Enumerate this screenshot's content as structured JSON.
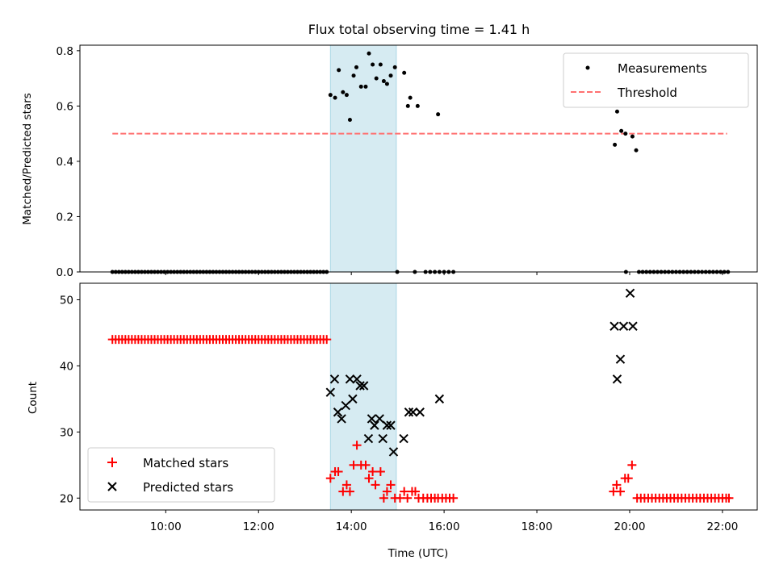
{
  "chart_data": {
    "title": "Flux total observing time = 1.41 h",
    "xlabel": "Time (UTC)",
    "x_unit": "hours UTC",
    "xlim": [
      8.15,
      22.75
    ],
    "x_ticks": [
      {
        "value": 10,
        "label": "10:00"
      },
      {
        "value": 12,
        "label": "12:00"
      },
      {
        "value": 14,
        "label": "14:00"
      },
      {
        "value": 16,
        "label": "16:00"
      },
      {
        "value": 18,
        "label": "18:00"
      },
      {
        "value": 20,
        "label": "20:00"
      },
      {
        "value": 22,
        "label": "22:00"
      }
    ],
    "highlight_span": {
      "x0": 13.55,
      "x1": 14.97,
      "color": "#add8e6",
      "alpha": 0.5
    },
    "top": {
      "type": "scatter",
      "ylabel": "Matched/Predicted stars",
      "ylim": [
        0,
        0.82
      ],
      "y_ticks": [
        {
          "value": 0,
          "label": "0.0"
        },
        {
          "value": 0.2,
          "label": "0.2"
        },
        {
          "value": 0.4,
          "label": "0.4"
        },
        {
          "value": 0.6,
          "label": "0.6"
        },
        {
          "value": 0.8,
          "label": "0.8"
        }
      ],
      "legend_position": "top-right",
      "series": [
        {
          "name": "Measurements",
          "color": "#000000",
          "marker": "dot",
          "points": [
            [
              13.55,
              0.64
            ],
            [
              13.65,
              0.63
            ],
            [
              13.73,
              0.73
            ],
            [
              13.82,
              0.65
            ],
            [
              13.9,
              0.64
            ],
            [
              13.97,
              0.55
            ],
            [
              14.05,
              0.71
            ],
            [
              14.11,
              0.74
            ],
            [
              14.21,
              0.67
            ],
            [
              14.31,
              0.67
            ],
            [
              14.38,
              0.79
            ],
            [
              14.46,
              0.75
            ],
            [
              14.54,
              0.7
            ],
            [
              14.63,
              0.75
            ],
            [
              14.7,
              0.69
            ],
            [
              14.77,
              0.68
            ],
            [
              14.85,
              0.71
            ],
            [
              14.94,
              0.74
            ],
            [
              15.14,
              0.72
            ],
            [
              15.22,
              0.6
            ],
            [
              15.27,
              0.63
            ],
            [
              15.43,
              0.6
            ],
            [
              15.87,
              0.57
            ],
            [
              19.68,
              0.46
            ],
            [
              19.73,
              0.58
            ],
            [
              19.82,
              0.51
            ],
            [
              19.91,
              0.5
            ],
            [
              20.06,
              0.49
            ],
            [
              20.14,
              0.44
            ],
            [
              14.99,
              0.0
            ],
            [
              15.37,
              0.0
            ],
            [
              15.6,
              0.0
            ],
            [
              15.7,
              0.0
            ],
            [
              15.8,
              0.0
            ],
            [
              15.9,
              0.0
            ],
            [
              16.0,
              0.0
            ],
            [
              16.1,
              0.0
            ],
            [
              16.2,
              0.0
            ],
            [
              19.92,
              0.0
            ],
            [
              20.2,
              0.0
            ],
            [
              20.28,
              0.0
            ],
            [
              20.36,
              0.0
            ],
            [
              20.44,
              0.0
            ],
            [
              20.52,
              0.0
            ],
            [
              20.6,
              0.0
            ],
            [
              20.68,
              0.0
            ],
            [
              20.76,
              0.0
            ],
            [
              20.84,
              0.0
            ],
            [
              20.92,
              0.0
            ],
            [
              21.0,
              0.0
            ],
            [
              21.08,
              0.0
            ],
            [
              21.16,
              0.0
            ],
            [
              21.24,
              0.0
            ],
            [
              21.32,
              0.0
            ],
            [
              21.4,
              0.0
            ],
            [
              21.48,
              0.0
            ],
            [
              21.56,
              0.0
            ],
            [
              21.64,
              0.0
            ],
            [
              21.72,
              0.0
            ],
            [
              21.8,
              0.0
            ],
            [
              21.88,
              0.0
            ],
            [
              21.96,
              0.0
            ],
            [
              22.04,
              0.0
            ],
            [
              22.12,
              0.0
            ]
          ],
          "zero_run": {
            "x_start": 8.85,
            "x_end": 13.48,
            "x_step": 0.07,
            "y": 0.0
          }
        },
        {
          "name": "Threshold",
          "color": "#ff7070",
          "style": "dashed",
          "points": [
            [
              8.85,
              0.5
            ],
            [
              22.1,
              0.5
            ]
          ]
        }
      ]
    },
    "bottom": {
      "type": "scatter",
      "ylabel": "Count",
      "ylim": [
        18.2,
        52.5
      ],
      "y_ticks": [
        {
          "value": 20,
          "label": "20"
        },
        {
          "value": 30,
          "label": "30"
        },
        {
          "value": 40,
          "label": "40"
        },
        {
          "value": 50,
          "label": "50"
        }
      ],
      "legend_position": "bottom-left",
      "series": [
        {
          "name": "Matched stars",
          "color": "#ff0000",
          "marker": "plus",
          "run": {
            "x_start": 8.85,
            "x_end": 13.5,
            "x_step": 0.07,
            "y": 44
          },
          "points": [
            [
              13.55,
              23
            ],
            [
              13.65,
              24
            ],
            [
              13.72,
              24
            ],
            [
              13.82,
              21
            ],
            [
              13.9,
              22
            ],
            [
              13.97,
              21
            ],
            [
              14.05,
              25
            ],
            [
              14.12,
              28
            ],
            [
              14.21,
              25
            ],
            [
              14.31,
              25
            ],
            [
              14.38,
              23
            ],
            [
              14.46,
              24
            ],
            [
              14.52,
              22
            ],
            [
              14.63,
              24
            ],
            [
              14.7,
              20
            ],
            [
              14.77,
              21
            ],
            [
              14.85,
              22
            ],
            [
              14.94,
              20
            ],
            [
              15.05,
              20
            ],
            [
              15.14,
              21
            ],
            [
              15.21,
              20
            ],
            [
              15.31,
              21
            ],
            [
              15.38,
              21
            ],
            [
              15.45,
              20
            ],
            [
              15.55,
              20
            ],
            [
              15.64,
              20
            ],
            [
              15.72,
              20
            ],
            [
              15.8,
              20
            ],
            [
              15.87,
              20
            ],
            [
              15.96,
              20
            ],
            [
              16.04,
              20
            ],
            [
              16.12,
              20
            ],
            [
              16.2,
              20
            ],
            [
              19.65,
              21
            ],
            [
              19.72,
              22
            ],
            [
              19.8,
              21
            ],
            [
              19.9,
              23
            ],
            [
              19.97,
              23
            ],
            [
              20.05,
              25
            ],
            [
              20.16,
              20
            ],
            [
              20.24,
              20
            ],
            [
              20.32,
              20
            ],
            [
              20.4,
              20
            ],
            [
              20.48,
              20
            ],
            [
              20.56,
              20
            ],
            [
              20.64,
              20
            ],
            [
              20.72,
              20
            ],
            [
              20.8,
              20
            ],
            [
              20.88,
              20
            ],
            [
              20.96,
              20
            ],
            [
              21.04,
              20
            ],
            [
              21.12,
              20
            ],
            [
              21.2,
              20
            ],
            [
              21.28,
              20
            ],
            [
              21.36,
              20
            ],
            [
              21.44,
              20
            ],
            [
              21.52,
              20
            ],
            [
              21.6,
              20
            ],
            [
              21.68,
              20
            ],
            [
              21.76,
              20
            ],
            [
              21.84,
              20
            ],
            [
              21.92,
              20
            ],
            [
              22.0,
              20
            ],
            [
              22.08,
              20
            ],
            [
              22.14,
              20
            ]
          ]
        },
        {
          "name": "Predicted stars",
          "color": "#000000",
          "marker": "x",
          "points": [
            [
              13.55,
              36
            ],
            [
              13.64,
              38
            ],
            [
              13.71,
              33
            ],
            [
              13.79,
              32
            ],
            [
              13.88,
              34
            ],
            [
              13.97,
              38
            ],
            [
              14.03,
              35
            ],
            [
              14.12,
              38
            ],
            [
              14.19,
              37
            ],
            [
              14.27,
              37
            ],
            [
              14.37,
              29
            ],
            [
              14.44,
              32
            ],
            [
              14.5,
              31
            ],
            [
              14.61,
              32
            ],
            [
              14.68,
              29
            ],
            [
              14.77,
              31
            ],
            [
              14.85,
              31
            ],
            [
              14.91,
              27
            ],
            [
              15.13,
              29
            ],
            [
              15.24,
              33
            ],
            [
              15.33,
              33
            ],
            [
              15.48,
              33
            ],
            [
              15.9,
              35
            ],
            [
              19.67,
              46
            ],
            [
              19.73,
              38
            ],
            [
              19.8,
              41
            ],
            [
              19.87,
              46
            ],
            [
              20.01,
              51
            ],
            [
              20.07,
              46
            ]
          ]
        }
      ]
    }
  }
}
